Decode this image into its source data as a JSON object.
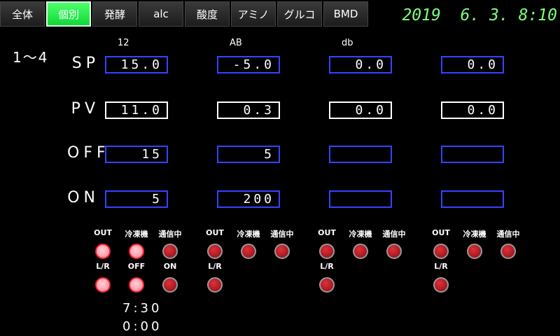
{
  "tabs": [
    {
      "label": "全体"
    },
    {
      "label": "個別",
      "active": true
    },
    {
      "label": "発酵"
    },
    {
      "label": "alc"
    },
    {
      "label": "酸度"
    },
    {
      "label": "アミノ"
    },
    {
      "label": "グルコ"
    },
    {
      "label": "BMD"
    }
  ],
  "clock": "2019  6. 3. 8:10",
  "range": "1～4",
  "columns": [
    "12",
    "AB",
    "db",
    ""
  ],
  "rows": [
    {
      "label": "SP",
      "values": [
        "15.0",
        "-5.0",
        "0.0",
        "0.0"
      ]
    },
    {
      "label": "PV",
      "values": [
        "11.0",
        "0.3",
        "0.0",
        "0.0"
      ]
    },
    {
      "label": "OFF",
      "values": [
        "15",
        "5",
        "",
        ""
      ]
    },
    {
      "label": "ON",
      "values": [
        "5",
        "200",
        "",
        ""
      ]
    }
  ],
  "lamp_labels": {
    "out": "OUT",
    "freezer": "冷凍機",
    "comm": "通信中",
    "lr": "L/R",
    "off": "OFF",
    "on": "ON"
  },
  "lamp_state": {
    "group1": {
      "out": true,
      "freezer": true,
      "comm": false,
      "lr": true,
      "off": true,
      "on": false
    },
    "group2": {
      "out": false,
      "freezer": false,
      "comm": false,
      "lr": false
    },
    "group3": {
      "out": false,
      "freezer": false,
      "comm": false,
      "lr": false
    },
    "group4": {
      "out": false,
      "freezer": false,
      "comm": false,
      "lr": false
    }
  },
  "times": [
    "7:30",
    "0:00"
  ],
  "colors": {
    "active_tab": "#10d83a",
    "clock": "#7dff7d",
    "input_border": "#3344ff",
    "lamp_on": "#ff8090",
    "lamp_off": "#b01520"
  }
}
